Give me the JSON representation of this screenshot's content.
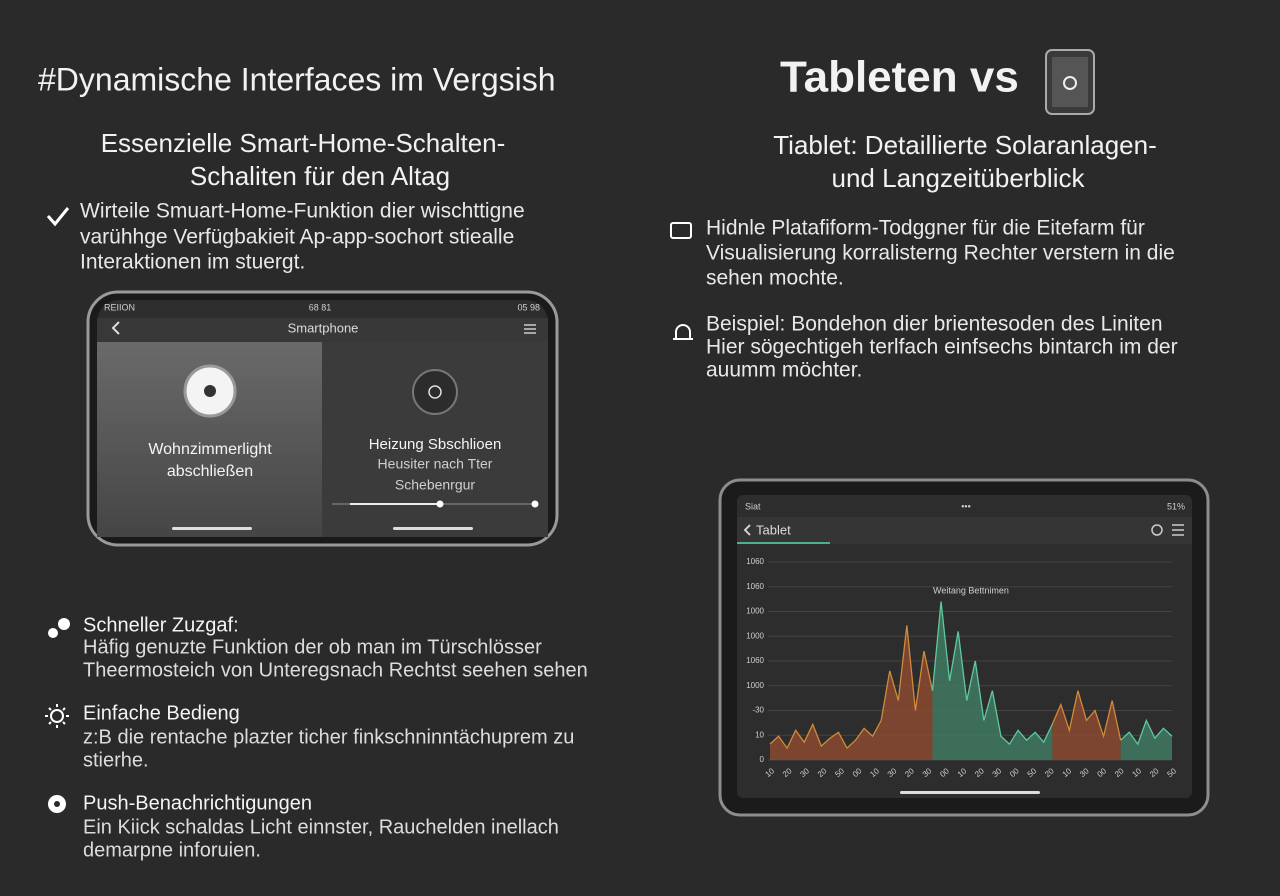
{
  "left": {
    "title": "#Dynamische Interfaces im Vergsish",
    "subtitle": [
      "Essenzielle Smart-Home-Schalten-",
      "Schaliten für den Altag"
    ],
    "intro": [
      "Wirteile Smuart-Home-Funktion dier wischttigne",
      "varühhge Verfügbakieit Ap-app-sochort stiealle",
      "Interaktionen im stuergt."
    ],
    "phone": {
      "status_left": "REIION",
      "status_center": "68 81",
      "status_right": "05 98",
      "title": "Smartphone",
      "tile1": [
        "Wohnzimmerlight",
        "abschließen"
      ],
      "tile2": [
        "Heizung Sbschlioen",
        "Heusiter nach Tter",
        "Schebenrgur"
      ]
    },
    "features": [
      {
        "title": "Schneller Zuzgaf:",
        "text": [
          "Häfig genuzte Funktion der ob man im Türschlösser",
          "Theermosteich von Unteregsnach Rechtst seehen sehen"
        ]
      },
      {
        "title": "Einfache Bedieng",
        "text": [
          "z:B die rentache plazter ticher finkschninntächuprem zu",
          "stierhe."
        ]
      },
      {
        "title": "Push-Benachrichtigungen",
        "text": [
          "Ein Kiick schaldas Licht einnster, Rauchelden inellach",
          "demarpne inforuien."
        ]
      }
    ]
  },
  "right": {
    "title": "Tableten vs",
    "subtitle": [
      "Tiablet: Detaillierte Solaranlagen-",
      "und Langzeitüberblick"
    ],
    "points": [
      [
        "Hidnle Platafiform-Todggner für die Eitefarm für",
        "Visualisierung korralisterng Rechter verstern in die",
        "sehen mochte."
      ],
      [
        "Beispiel: Bondehon dier brientesoden des Liniten",
        "Hier sögechtigeh terlfach einfsechs bintarch im der",
        "auumm möchter."
      ]
    ],
    "tablet": {
      "status_left": "Siat",
      "status_center": "•••",
      "status_right": "51%",
      "title": "Tablet",
      "chart": {
        "type": "area",
        "annotation": "Weitang Bettnimen",
        "ytick_labels": [
          "1060",
          "1060",
          "1000",
          "1000",
          "1060",
          "1000",
          "-30",
          "10",
          "0"
        ],
        "xtick_labels": [
          "10",
          "20",
          "30",
          "20",
          "50",
          "00",
          "10",
          "30",
          "20",
          "30",
          "00",
          "10",
          "20",
          "30",
          "00",
          "50",
          "20",
          "10",
          "30",
          "00",
          "20",
          "10",
          "20",
          "50"
        ],
        "ylim": [
          0,
          100
        ],
        "series": [
          {
            "color": "#d08a3a",
            "fill": "#8a4a30",
            "values": [
              8,
              12,
              6,
              15,
              9,
              18,
              7,
              11,
              14,
              6,
              10,
              16,
              12,
              20,
              45,
              30,
              68,
              25,
              55,
              35,
              null,
              null,
              null,
              null,
              null,
              null,
              null,
              null,
              null,
              null,
              null,
              null,
              null,
              18,
              28,
              15,
              35,
              20,
              25,
              12,
              30,
              10,
              null,
              null,
              null,
              null,
              null,
              null
            ]
          },
          {
            "color": "#5fc9a0",
            "fill": "#3f7a62",
            "values": [
              null,
              null,
              null,
              null,
              null,
              null,
              null,
              null,
              null,
              null,
              null,
              null,
              null,
              null,
              null,
              null,
              null,
              null,
              null,
              35,
              80,
              40,
              65,
              30,
              50,
              20,
              35,
              12,
              8,
              15,
              10,
              14,
              9,
              18,
              null,
              null,
              null,
              null,
              null,
              null,
              null,
              10,
              14,
              8,
              20,
              11,
              16,
              12
            ]
          }
        ]
      }
    }
  }
}
